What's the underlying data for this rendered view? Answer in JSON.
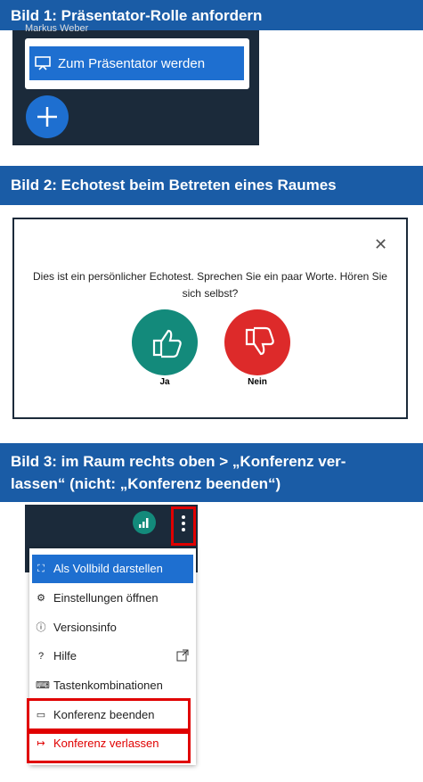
{
  "sections": [
    {
      "title": "Bild 1: Präsentator-Rolle anfordern",
      "user": "Markus Weber",
      "button": "Zum Präsentator werden"
    },
    {
      "title": "Bild 2: Echotest beim Betreten eines Raumes",
      "text": "Dies ist ein persönlicher Echotest. Sprechen Sie ein paar Worte. Hören Sie sich selbst?",
      "yes": "Ja",
      "no": "Nein"
    },
    {
      "title": "Bild 3: im Raum rechts oben > „Konferenz ver-\nlassen“ (nicht: „Konferenz beenden“)",
      "menu": [
        "Als Vollbild darstellen",
        "Einstellungen öffnen",
        "Versionsinfo",
        "Hilfe",
        "Tastenkombinationen",
        "Konferenz beenden",
        "Konferenz verlassen"
      ]
    }
  ]
}
